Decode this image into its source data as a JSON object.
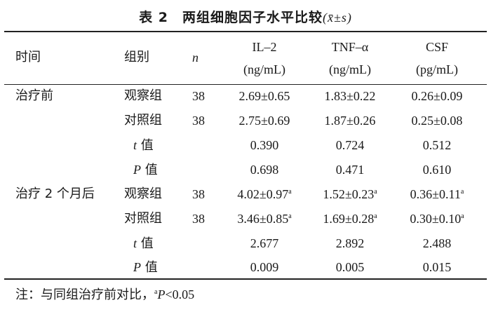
{
  "title": {
    "label": "表 2　两组细胞因子水平比较",
    "stat": "(x̄±s)"
  },
  "header": {
    "time": "时间",
    "group": "组别",
    "n": "n",
    "il2_name": "IL–2",
    "il2_unit": "(ng/mL)",
    "tnf_name": "TNF–α",
    "tnf_unit": "(ng/mL)",
    "csf_name": "CSF",
    "csf_unit": "(pg/mL)"
  },
  "rows": [
    {
      "time": "治疗前",
      "group": "观察组",
      "n": "38",
      "il2": "2.69±0.65",
      "il2_sup": "",
      "tnf": "1.83±0.22",
      "tnf_sup": "",
      "csf": "0.26±0.09",
      "csf_sup": ""
    },
    {
      "time": "",
      "group": "对照组",
      "n": "38",
      "il2": "2.75±0.69",
      "il2_sup": "",
      "tnf": "1.87±0.26",
      "tnf_sup": "",
      "csf": "0.25±0.08",
      "csf_sup": ""
    },
    {
      "time": "",
      "group_stat": "t",
      "group_suffix": " 值",
      "n": "",
      "il2": "0.390",
      "il2_sup": "",
      "tnf": "0.724",
      "tnf_sup": "",
      "csf": "0.512",
      "csf_sup": ""
    },
    {
      "time": "",
      "group_stat": "P",
      "group_suffix": " 值",
      "n": "",
      "il2": "0.698",
      "il2_sup": "",
      "tnf": "0.471",
      "tnf_sup": "",
      "csf": "0.610",
      "csf_sup": ""
    },
    {
      "time": "治疗 2 个月后",
      "group": "观察组",
      "n": "38",
      "il2": "4.02±0.97",
      "il2_sup": "a",
      "tnf": "1.52±0.23",
      "tnf_sup": "a",
      "csf": "0.36±0.11",
      "csf_sup": "a"
    },
    {
      "time": "",
      "group": "对照组",
      "n": "38",
      "il2": "3.46±0.85",
      "il2_sup": "a",
      "tnf": "1.69±0.28",
      "tnf_sup": "a",
      "csf": "0.30±0.10",
      "csf_sup": "a"
    },
    {
      "time": "",
      "group_stat": "t",
      "group_suffix": " 值",
      "n": "",
      "il2": "2.677",
      "il2_sup": "",
      "tnf": "2.892",
      "tnf_sup": "",
      "csf": "2.488",
      "csf_sup": ""
    },
    {
      "time": "",
      "group_stat": "P",
      "group_suffix": " 值",
      "n": "",
      "il2": "0.009",
      "il2_sup": "",
      "tnf": "0.005",
      "tnf_sup": "",
      "csf": "0.015",
      "csf_sup": ""
    }
  ],
  "note": {
    "prefix": "注：与同组治疗前对比，",
    "sup": "a",
    "p": "P",
    "suffix": "<0.05"
  }
}
